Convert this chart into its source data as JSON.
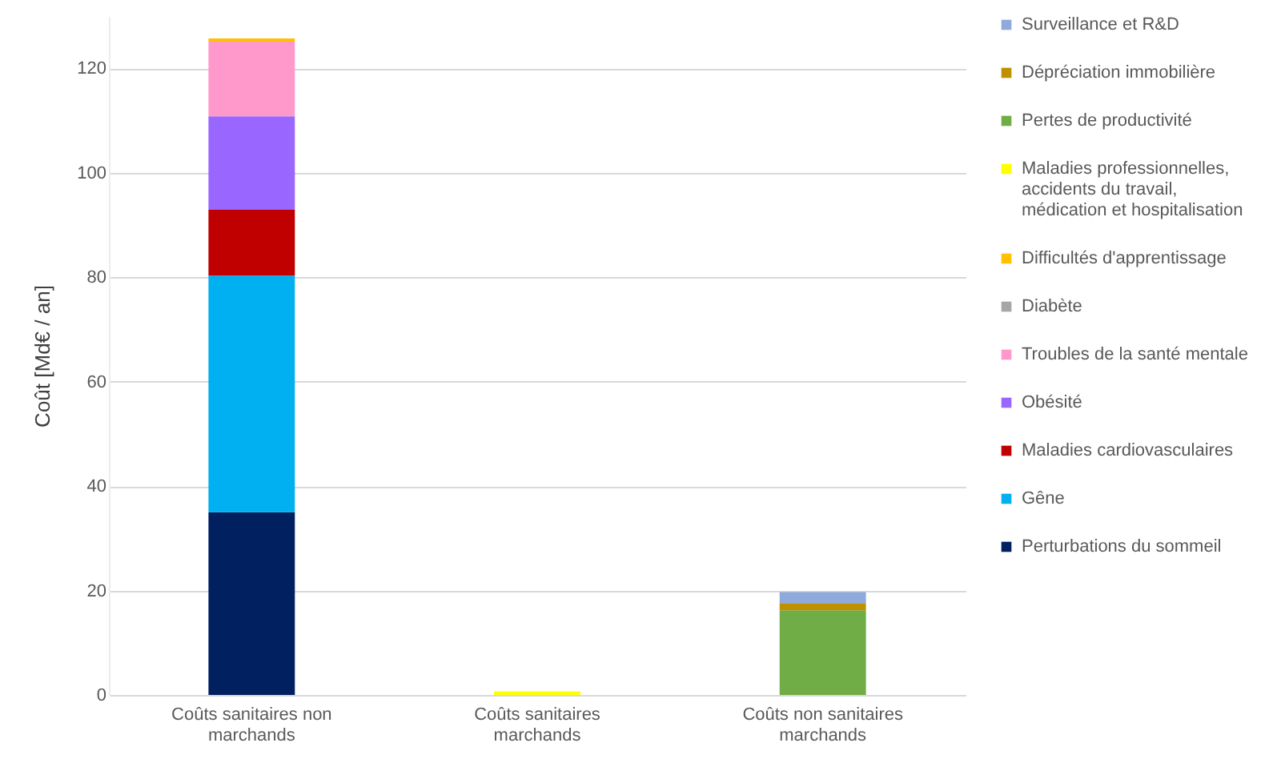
{
  "chart_data": {
    "type": "bar",
    "stacked": true,
    "ylabel": "Coût [Md€ / an]",
    "categories": [
      "Coûts sanitaires non marchands",
      "Coûts sanitaires marchands",
      "Coûts non sanitaires marchands"
    ],
    "series": [
      {
        "name": "Perturbations du sommeil",
        "color": "#002060",
        "values": [
          35,
          null,
          null
        ]
      },
      {
        "name": "Gêne",
        "color": "#00b0f0",
        "values": [
          45.3,
          null,
          null
        ]
      },
      {
        "name": "Maladies cardiovasculaires",
        "color": "#c00000",
        "values": [
          12.6,
          null,
          null
        ]
      },
      {
        "name": "Obésité",
        "color": "#9966ff",
        "values": [
          17.9,
          null,
          null
        ]
      },
      {
        "name": "Troubles de la santé mentale",
        "color": "#ff99cc",
        "values": [
          14.3,
          null,
          null
        ]
      },
      {
        "name": "Diabète",
        "color": "#a6a6a6",
        "values": [
          null,
          null,
          null
        ]
      },
      {
        "name": "Difficultés d'apprentissage",
        "color": "#ffc000",
        "values": [
          0.6,
          null,
          null
        ]
      },
      {
        "name": "Maladies professionnelles, accidents du travail, médication et hospitalisation",
        "color": "#ffff00",
        "values": [
          null,
          0.7,
          null
        ]
      },
      {
        "name": "Pertes de productivité",
        "color": "#70ad47",
        "values": [
          null,
          null,
          16.2
        ]
      },
      {
        "name": "Dépréciation immobilière",
        "color": "#bf9000",
        "values": [
          null,
          null,
          1.4
        ]
      },
      {
        "name": "Surveillance et R&D",
        "color": "#8ea9db",
        "values": [
          null,
          null,
          2.1
        ]
      }
    ],
    "ylim": [
      0,
      130
    ],
    "yticks": [
      0,
      20,
      40,
      60,
      80,
      100,
      120
    ],
    "grid": "y",
    "legend": "right"
  }
}
